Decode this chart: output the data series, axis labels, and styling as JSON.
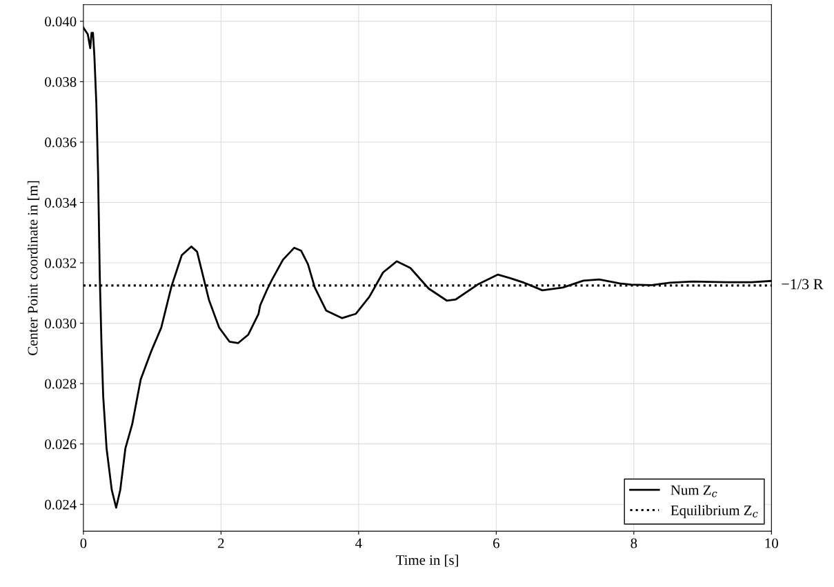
{
  "chart_data": {
    "type": "line",
    "xlabel": "Time in [s]",
    "ylabel": "Center Point coordinate in [m]",
    "xlim": [
      0,
      10
    ],
    "xticks": [
      0,
      2,
      4,
      6,
      8,
      10
    ],
    "ylim": [
      0.02311,
      0.04055
    ],
    "yticks": [
      {
        "value": 0.024,
        "label": "0.024"
      },
      {
        "value": 0.026,
        "label": "0.026"
      },
      {
        "value": 0.028,
        "label": "0.028"
      },
      {
        "value": 0.03,
        "label": "0.030"
      },
      {
        "value": 0.032,
        "label": "0.032"
      },
      {
        "value": 0.034,
        "label": "0.034"
      },
      {
        "value": 0.036,
        "label": "0.036"
      },
      {
        "value": 0.038,
        "label": "0.038"
      },
      {
        "value": 0.04,
        "label": "0.040"
      }
    ],
    "grid": true,
    "legend": "bottom right",
    "series": [
      {
        "name": "Num Z$_{c}$",
        "color": "#000000",
        "line_style": "solid",
        "x": [
          0,
          0.064,
          0.099,
          0.119,
          0.139,
          0.159,
          0.188,
          0.213,
          0.238,
          0.263,
          0.288,
          0.337,
          0.412,
          0.476,
          0.536,
          0.61,
          0.709,
          0.833,
          0.982,
          1.131,
          1.28,
          1.429,
          1.568,
          1.652,
          1.825,
          1.974,
          2.123,
          2.247,
          2.396,
          2.545,
          2.569,
          2.669,
          2.743,
          2.9,
          3.065,
          3.165,
          3.264,
          3.363,
          3.528,
          3.76,
          3.958,
          4.157,
          4.355,
          4.554,
          4.752,
          5.017,
          5.281,
          5.413,
          5.744,
          6.025,
          6.207,
          6.405,
          6.67,
          6.968,
          7.266,
          7.497,
          7.795,
          7.96,
          8.258,
          8.522,
          8.853,
          9.349,
          9.712,
          10.0
        ],
        "values": [
          0.03979,
          0.03957,
          0.03911,
          0.03962,
          0.03962,
          0.03888,
          0.03728,
          0.03499,
          0.03157,
          0.02928,
          0.02757,
          0.02585,
          0.02448,
          0.02389,
          0.02448,
          0.02585,
          0.02665,
          0.02814,
          0.02905,
          0.02985,
          0.03122,
          0.03225,
          0.03254,
          0.03237,
          0.03077,
          0.02985,
          0.02939,
          0.02934,
          0.02962,
          0.03031,
          0.03059,
          0.03111,
          0.03145,
          0.0321,
          0.0325,
          0.0324,
          0.03195,
          0.03118,
          0.03042,
          0.03017,
          0.03031,
          0.03088,
          0.03168,
          0.03205,
          0.03183,
          0.03115,
          0.03075,
          0.03079,
          0.0313,
          0.03161,
          0.03149,
          0.03134,
          0.03109,
          0.03118,
          0.03141,
          0.03145,
          0.03132,
          0.03128,
          0.03126,
          0.03134,
          0.03138,
          0.03136,
          0.03136,
          0.0314
        ]
      },
      {
        "name": "Equilibrium Z$_{c}$",
        "color": "#000000",
        "line_style": "dotted",
        "x": [
          0,
          10
        ],
        "values": [
          0.03125,
          0.03125
        ]
      }
    ],
    "annotations": [
      {
        "text": "−1/3 R",
        "x": 10,
        "y": 0.03125
      }
    ]
  }
}
